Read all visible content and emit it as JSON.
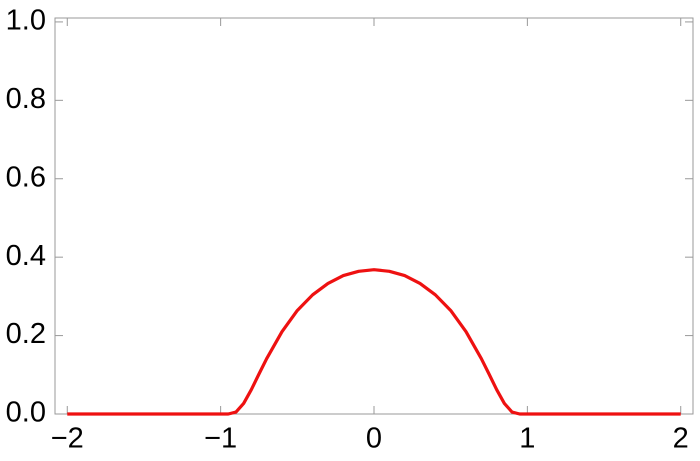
{
  "chart_data": {
    "type": "line",
    "x": [
      -2,
      -1.5,
      -1,
      -0.95,
      -0.9,
      -0.85,
      -0.8,
      -0.75,
      -0.7,
      -0.6,
      -0.5,
      -0.4,
      -0.3,
      -0.2,
      -0.1,
      0,
      0.1,
      0.2,
      0.3,
      0.4,
      0.5,
      0.6,
      0.7,
      0.75,
      0.8,
      0.85,
      0.9,
      0.95,
      1,
      1.5,
      2
    ],
    "series": [
      {
        "color": "#ee1111",
        "values": [
          0,
          0,
          0,
          0,
          0.005,
          0.027,
          0.062,
          0.102,
          0.141,
          0.21,
          0.264,
          0.304,
          0.333,
          0.353,
          0.364,
          0.368,
          0.364,
          0.353,
          0.333,
          0.304,
          0.264,
          0.21,
          0.141,
          0.102,
          0.062,
          0.027,
          0.005,
          0,
          0,
          0,
          0
        ]
      }
    ],
    "xlim": [
      -2.08,
      2.08
    ],
    "ylim": [
      0,
      1.01
    ],
    "xticks": [
      {
        "value": -2,
        "label": "−2"
      },
      {
        "value": -1,
        "label": "−1"
      },
      0,
      1,
      2
    ],
    "yticks": [
      {
        "value": 0,
        "label": "0.0"
      },
      0.2,
      0.4,
      0.6,
      0.8,
      {
        "value": 1,
        "label": "1.0"
      }
    ],
    "grid": false
  }
}
